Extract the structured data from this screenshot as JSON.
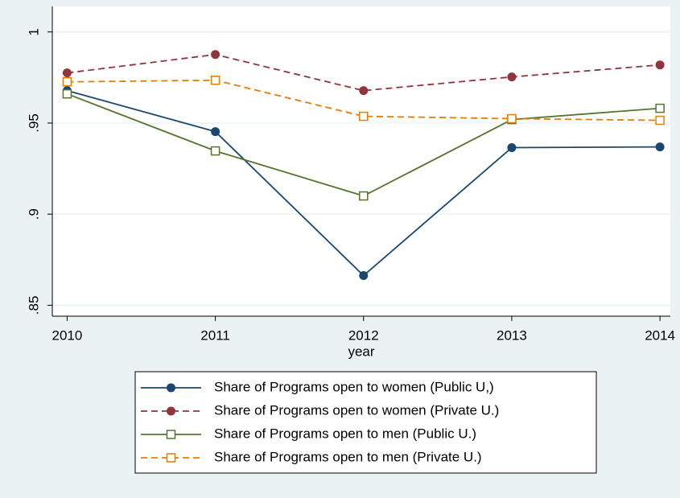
{
  "chart_data": {
    "type": "line",
    "x_label": "year",
    "x": [
      2010,
      2011,
      2012,
      2013,
      2014
    ],
    "xlim": [
      2009.9,
      2014.07
    ],
    "xticks": [
      2010,
      2011,
      2012,
      2013,
      2014
    ],
    "ylim": [
      0.844,
      1.014
    ],
    "yticks": [
      {
        "value": 0.85,
        "label": ".85"
      },
      {
        "value": 0.9,
        "label": ".9"
      },
      {
        "value": 0.95,
        "label": ".95"
      },
      1
    ],
    "grid": true,
    "legend": "bottom",
    "series": [
      {
        "name": "Share of Programs open to women (Public U,)",
        "color": "#1a476f",
        "marker": "circle",
        "dashed": false,
        "values": [
          0.9678,
          0.9453,
          0.8663,
          0.9365,
          0.9369
        ]
      },
      {
        "name": "Share of Programs open to women (Private U.)",
        "color": "#90353b",
        "marker": "circle",
        "dashed": true,
        "values": [
          0.9775,
          0.9876,
          0.9678,
          0.9753,
          0.9819
        ]
      },
      {
        "name": "Share of Programs open to men (Public U.)",
        "color": "#55752f",
        "marker": "square",
        "dashed": false,
        "values": [
          0.966,
          0.9347,
          0.91,
          0.9519,
          0.9581
        ]
      },
      {
        "name": "Share of Programs open to men (Private U.)",
        "color": "#e37e00",
        "marker": "square",
        "dashed": true,
        "values": [
          0.9726,
          0.9735,
          0.9537,
          0.9524,
          0.9515
        ]
      }
    ]
  }
}
